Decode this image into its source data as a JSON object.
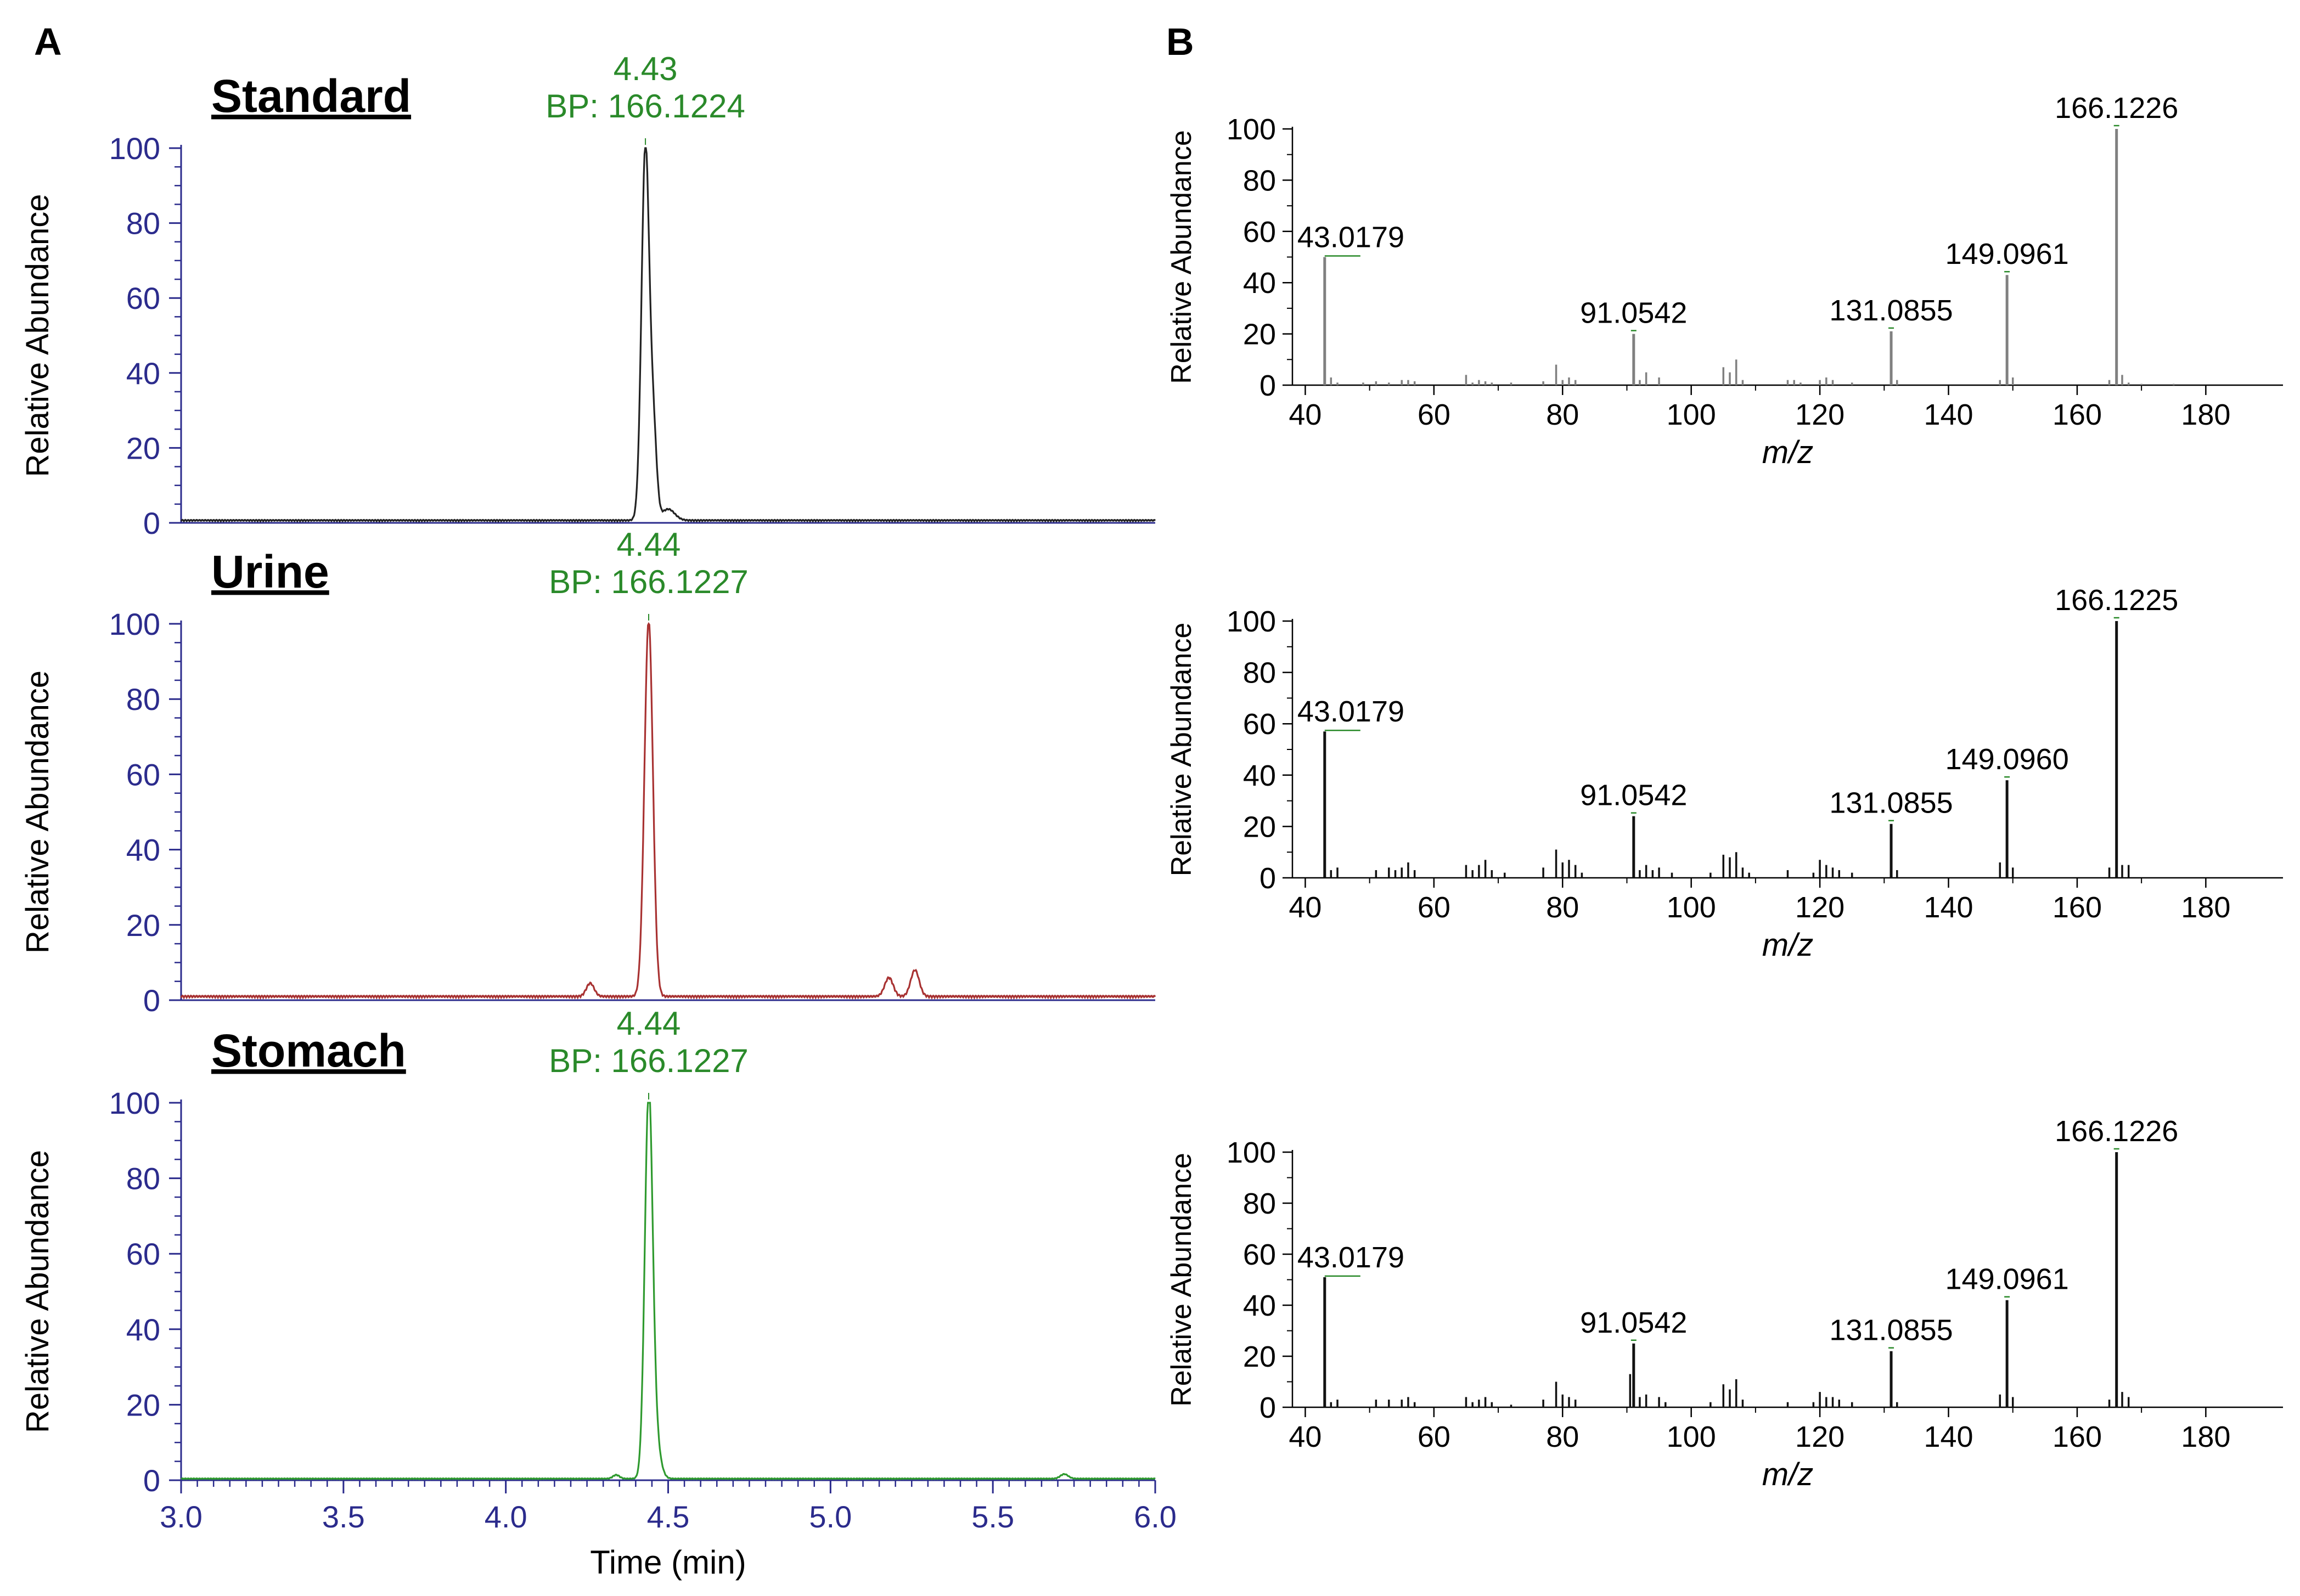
{
  "figure": {
    "panel_a_label": "A",
    "panel_b_label": "B"
  },
  "colors": {
    "axis_blue": "#2b2b8c",
    "peak_green": "#2a8a2a",
    "standard_trace": "#222222",
    "urine_trace": "#a83232",
    "stomach_trace": "#2f9a2f",
    "spectrum_gray": "#808080",
    "spectrum_black": "#111111"
  },
  "chart_data": [
    {
      "type": "line",
      "panel": "A",
      "name": "Standard",
      "title": "Standard",
      "peak_label_rt": "4.43",
      "peak_label_bp": "BP: 166.1224",
      "ylabel": "Relative Abundance",
      "xlabel": "",
      "xlim": [
        3.0,
        6.0
      ],
      "ylim": [
        0,
        100
      ],
      "yticks": [
        "0",
        "20",
        "40",
        "60",
        "80",
        "100"
      ],
      "xticks": [],
      "trace_color": "#222222",
      "peaks": [
        {
          "rt": 4.43,
          "height": 100,
          "width": 0.012
        },
        {
          "rt": 4.455,
          "height": 22,
          "width": 0.01
        },
        {
          "rt": 4.5,
          "height": 3,
          "width": 0.02
        }
      ],
      "baseline": 0.8
    },
    {
      "type": "line",
      "panel": "A",
      "name": "Urine",
      "title": "Urine",
      "peak_label_rt": "4.44",
      "peak_label_bp": "BP: 166.1227",
      "ylabel": "Relative Abundance",
      "xlabel": "",
      "xlim": [
        3.0,
        6.0
      ],
      "ylim": [
        0,
        100
      ],
      "yticks": [
        "0",
        "20",
        "40",
        "60",
        "80",
        "100"
      ],
      "xticks": [],
      "trace_color": "#a83232",
      "peaks": [
        {
          "rt": 4.44,
          "height": 100,
          "width": 0.013
        },
        {
          "rt": 4.26,
          "height": 3.5,
          "width": 0.012
        },
        {
          "rt": 5.18,
          "height": 5,
          "width": 0.013
        },
        {
          "rt": 5.26,
          "height": 7,
          "width": 0.013
        }
      ],
      "baseline": 1.2
    },
    {
      "type": "line",
      "panel": "A",
      "name": "Stomach",
      "title": "Stomach",
      "peak_label_rt": "4.44",
      "peak_label_bp": "BP: 166.1227",
      "ylabel": "Relative Abundance",
      "xlabel": "Time (min)",
      "xlim": [
        3.0,
        6.0
      ],
      "ylim": [
        0,
        100
      ],
      "yticks": [
        "0",
        "20",
        "40",
        "60",
        "80",
        "100"
      ],
      "xticks": [
        "3.0",
        "3.5",
        "4.0",
        "4.5",
        "5.0",
        "5.5",
        "6.0"
      ],
      "trace_color": "#2f9a2f",
      "peaks": [
        {
          "rt": 4.44,
          "height": 100,
          "width": 0.012
        },
        {
          "rt": 4.46,
          "height": 10,
          "width": 0.015
        },
        {
          "rt": 4.34,
          "height": 1,
          "width": 0.01
        },
        {
          "rt": 5.72,
          "height": 1.2,
          "width": 0.012
        }
      ],
      "baseline": 0.5
    },
    {
      "type": "bar",
      "panel": "B",
      "name": "Standard spectrum",
      "ylabel": "Relative Abundance",
      "xlabel": "m/z",
      "xlim": [
        38,
        192
      ],
      "ylim": [
        0,
        100
      ],
      "xticks": [
        "40",
        "60",
        "80",
        "100",
        "120",
        "140",
        "160",
        "180"
      ],
      "yticks": [
        "0",
        "20",
        "40",
        "60",
        "80",
        "100"
      ],
      "bar_color": "#808080",
      "annotations": [
        {
          "mz": 43.0179,
          "label": "43.0179"
        },
        {
          "mz": 91.0542,
          "label": "91.0542"
        },
        {
          "mz": 131.0855,
          "label": "131.0855"
        },
        {
          "mz": 149.0961,
          "label": "149.0961"
        },
        {
          "mz": 166.1226,
          "label": "166.1226"
        }
      ],
      "peaks": [
        [
          43.0179,
          50
        ],
        [
          44,
          3
        ],
        [
          45,
          1
        ],
        [
          49,
          1
        ],
        [
          51,
          1.5
        ],
        [
          53,
          1
        ],
        [
          55,
          2
        ],
        [
          56,
          2
        ],
        [
          57,
          1.5
        ],
        [
          65,
          4
        ],
        [
          66,
          1
        ],
        [
          67,
          2
        ],
        [
          68,
          1.5
        ],
        [
          69,
          1
        ],
        [
          72,
          1
        ],
        [
          77,
          1.5
        ],
        [
          79,
          8
        ],
        [
          80,
          2
        ],
        [
          81,
          3
        ],
        [
          82,
          2
        ],
        [
          91.0542,
          20
        ],
        [
          92,
          2
        ],
        [
          93,
          5
        ],
        [
          95,
          3
        ],
        [
          105,
          7
        ],
        [
          106,
          5
        ],
        [
          107,
          10
        ],
        [
          108,
          2
        ],
        [
          115,
          2
        ],
        [
          116,
          2
        ],
        [
          117,
          1
        ],
        [
          120,
          2
        ],
        [
          121,
          3
        ],
        [
          122,
          2
        ],
        [
          125,
          1
        ],
        [
          131.0855,
          21
        ],
        [
          132,
          2
        ],
        [
          148,
          2
        ],
        [
          149.0961,
          43
        ],
        [
          150,
          3
        ],
        [
          165,
          2
        ],
        [
          166.1226,
          100
        ],
        [
          167,
          4
        ],
        [
          168,
          1
        ],
        [
          170,
          0.5
        ],
        [
          175,
          0.5
        ]
      ]
    },
    {
      "type": "bar",
      "panel": "B",
      "name": "Urine spectrum",
      "ylabel": "Relative Abundance",
      "xlabel": "m/z",
      "xlim": [
        38,
        192
      ],
      "ylim": [
        0,
        100
      ],
      "xticks": [
        "40",
        "60",
        "80",
        "100",
        "120",
        "140",
        "160",
        "180"
      ],
      "yticks": [
        "0",
        "20",
        "40",
        "60",
        "80",
        "100"
      ],
      "bar_color": "#111111",
      "annotations": [
        {
          "mz": 43.0179,
          "label": "43.0179"
        },
        {
          "mz": 91.0542,
          "label": "91.0542"
        },
        {
          "mz": 131.0855,
          "label": "131.0855"
        },
        {
          "mz": 149.096,
          "label": "149.0960"
        },
        {
          "mz": 166.1225,
          "label": "166.1225"
        }
      ],
      "peaks": [
        [
          43.0179,
          57
        ],
        [
          44,
          3
        ],
        [
          45,
          4
        ],
        [
          51,
          3
        ],
        [
          53,
          4
        ],
        [
          54,
          3
        ],
        [
          55,
          4
        ],
        [
          56,
          6
        ],
        [
          57,
          3
        ],
        [
          65,
          5
        ],
        [
          66,
          3
        ],
        [
          67,
          5
        ],
        [
          68,
          7
        ],
        [
          69,
          3
        ],
        [
          71,
          2
        ],
        [
          77,
          4
        ],
        [
          79,
          11
        ],
        [
          80,
          6
        ],
        [
          81,
          7
        ],
        [
          82,
          5
        ],
        [
          83,
          2
        ],
        [
          91.0542,
          24
        ],
        [
          92,
          3
        ],
        [
          93,
          5
        ],
        [
          94,
          3
        ],
        [
          95,
          4
        ],
        [
          97,
          2
        ],
        [
          103,
          2
        ],
        [
          105,
          9
        ],
        [
          106,
          8
        ],
        [
          107,
          10
        ],
        [
          108,
          4
        ],
        [
          109,
          2
        ],
        [
          115,
          3
        ],
        [
          119,
          2
        ],
        [
          120,
          7
        ],
        [
          121,
          5
        ],
        [
          122,
          4
        ],
        [
          123,
          3
        ],
        [
          125,
          2
        ],
        [
          131.0855,
          21
        ],
        [
          132,
          3
        ],
        [
          148,
          6
        ],
        [
          149.096,
          38
        ],
        [
          150,
          4
        ],
        [
          165,
          4
        ],
        [
          166.1225,
          100
        ],
        [
          167,
          5
        ],
        [
          168,
          5
        ]
      ]
    },
    {
      "type": "bar",
      "panel": "B",
      "name": "Stomach spectrum",
      "ylabel": "Relative Abundance",
      "xlabel": "m/z",
      "xlim": [
        38,
        192
      ],
      "ylim": [
        0,
        100
      ],
      "xticks": [
        "40",
        "60",
        "80",
        "100",
        "120",
        "140",
        "160",
        "180"
      ],
      "yticks": [
        "0",
        "20",
        "40",
        "60",
        "80",
        "100"
      ],
      "bar_color": "#111111",
      "annotations": [
        {
          "mz": 43.0179,
          "label": "43.0179"
        },
        {
          "mz": 91.0542,
          "label": "91.0542"
        },
        {
          "mz": 131.0855,
          "label": "131.0855"
        },
        {
          "mz": 149.0961,
          "label": "149.0961"
        },
        {
          "mz": 166.1226,
          "label": "166.1226"
        }
      ],
      "peaks": [
        [
          43.0179,
          51
        ],
        [
          44,
          2
        ],
        [
          45,
          3
        ],
        [
          51,
          3
        ],
        [
          53,
          3
        ],
        [
          55,
          3
        ],
        [
          56,
          4
        ],
        [
          57,
          2
        ],
        [
          65,
          4
        ],
        [
          66,
          2
        ],
        [
          67,
          3
        ],
        [
          68,
          4
        ],
        [
          69,
          2
        ],
        [
          72,
          1
        ],
        [
          77,
          3
        ],
        [
          79,
          10
        ],
        [
          80,
          5
        ],
        [
          81,
          4
        ],
        [
          82,
          3
        ],
        [
          90.5,
          13
        ],
        [
          91.0542,
          25
        ],
        [
          92,
          4
        ],
        [
          93,
          5
        ],
        [
          95,
          4
        ],
        [
          96,
          2
        ],
        [
          103,
          2
        ],
        [
          105,
          9
        ],
        [
          106,
          7
        ],
        [
          107,
          11
        ],
        [
          108,
          3
        ],
        [
          115,
          2
        ],
        [
          119,
          2
        ],
        [
          120,
          6
        ],
        [
          121,
          4
        ],
        [
          122,
          4
        ],
        [
          123,
          3
        ],
        [
          125,
          2
        ],
        [
          131.0855,
          22
        ],
        [
          132,
          2
        ],
        [
          148,
          5
        ],
        [
          149.0961,
          42
        ],
        [
          150,
          4
        ],
        [
          165,
          3
        ],
        [
          166.1226,
          100
        ],
        [
          167,
          6
        ],
        [
          168,
          4
        ]
      ]
    }
  ]
}
